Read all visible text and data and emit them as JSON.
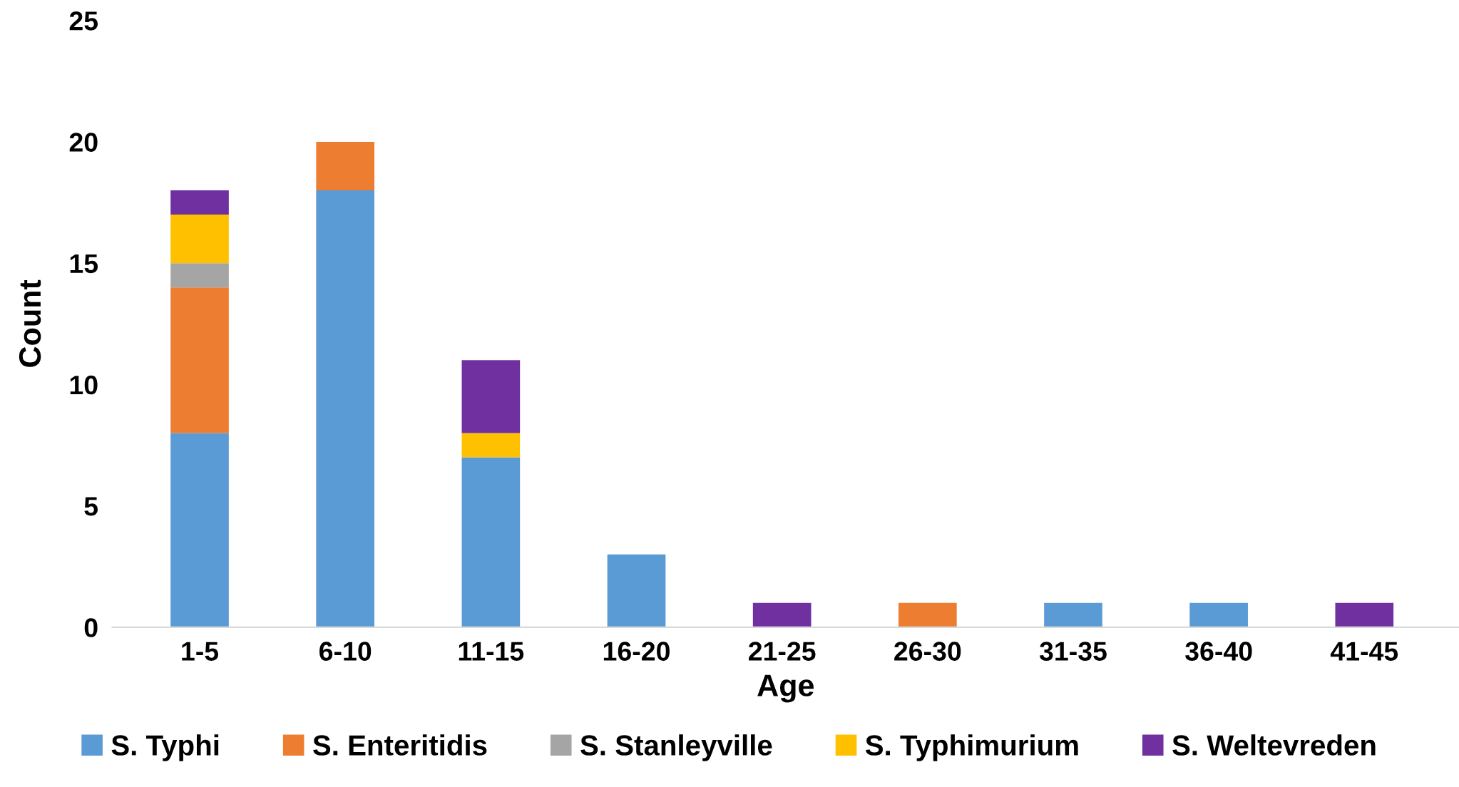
{
  "chart_data": {
    "type": "bar",
    "stacked": true,
    "xlabel": "Age",
    "ylabel": "Count",
    "categories": [
      "1-5",
      "6-10",
      "11-15",
      "16-20",
      "21-25",
      "26-30",
      "31-35",
      "36-40",
      "41-45"
    ],
    "series": [
      {
        "name": "S. Typhi",
        "color": "#5b9bd5",
        "values": [
          8,
          18,
          7,
          3,
          0,
          0,
          1,
          1,
          0
        ]
      },
      {
        "name": "S. Enteritidis",
        "color": "#ed7d31",
        "values": [
          6,
          2,
          0,
          0,
          0,
          1,
          0,
          0,
          0
        ]
      },
      {
        "name": "S. Stanleyville",
        "color": "#a5a5a5",
        "values": [
          1,
          0,
          0,
          0,
          0,
          0,
          0,
          0,
          0
        ]
      },
      {
        "name": "S. Typhimurium",
        "color": "#ffc000",
        "values": [
          2,
          0,
          1,
          0,
          0,
          0,
          0,
          0,
          0
        ]
      },
      {
        "name": "S. Weltevreden",
        "color": "#7030a0",
        "values": [
          1,
          0,
          3,
          0,
          1,
          0,
          0,
          0,
          1
        ]
      }
    ],
    "ylim": [
      0,
      25
    ],
    "yticks": [
      0,
      5,
      10,
      15,
      20,
      25
    ],
    "grid": false,
    "legend": "bottom"
  }
}
